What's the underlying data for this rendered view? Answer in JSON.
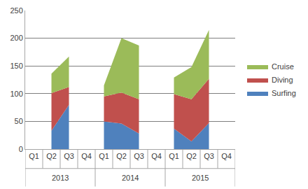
{
  "chart_data": {
    "type": "area",
    "stacked": true,
    "categories": [
      "Q1",
      "Q2",
      "Q3",
      "Q4",
      "Q1",
      "Q2",
      "Q3",
      "Q4",
      "Q1",
      "Q2",
      "Q3",
      "Q4"
    ],
    "groups": [
      "2013",
      "2014",
      "2015"
    ],
    "series": [
      {
        "name": "Surfing",
        "color": "#4f81bd",
        "values": [
          null,
          33,
          80,
          null,
          50,
          46,
          28,
          null,
          37,
          14,
          47,
          null
        ]
      },
      {
        "name": "Diving",
        "color": "#c0504d",
        "values": [
          null,
          68,
          32,
          null,
          45,
          56,
          62,
          null,
          62,
          76,
          80,
          null
        ]
      },
      {
        "name": "Cruise",
        "color": "#9bbb59",
        "values": [
          null,
          35,
          55,
          null,
          20,
          98,
          97,
          null,
          30,
          58,
          88,
          null
        ]
      }
    ],
    "ylim": [
      0,
      250
    ],
    "yticks": [
      0,
      50,
      100,
      150,
      200,
      250
    ],
    "grid": true,
    "legend": "right"
  }
}
